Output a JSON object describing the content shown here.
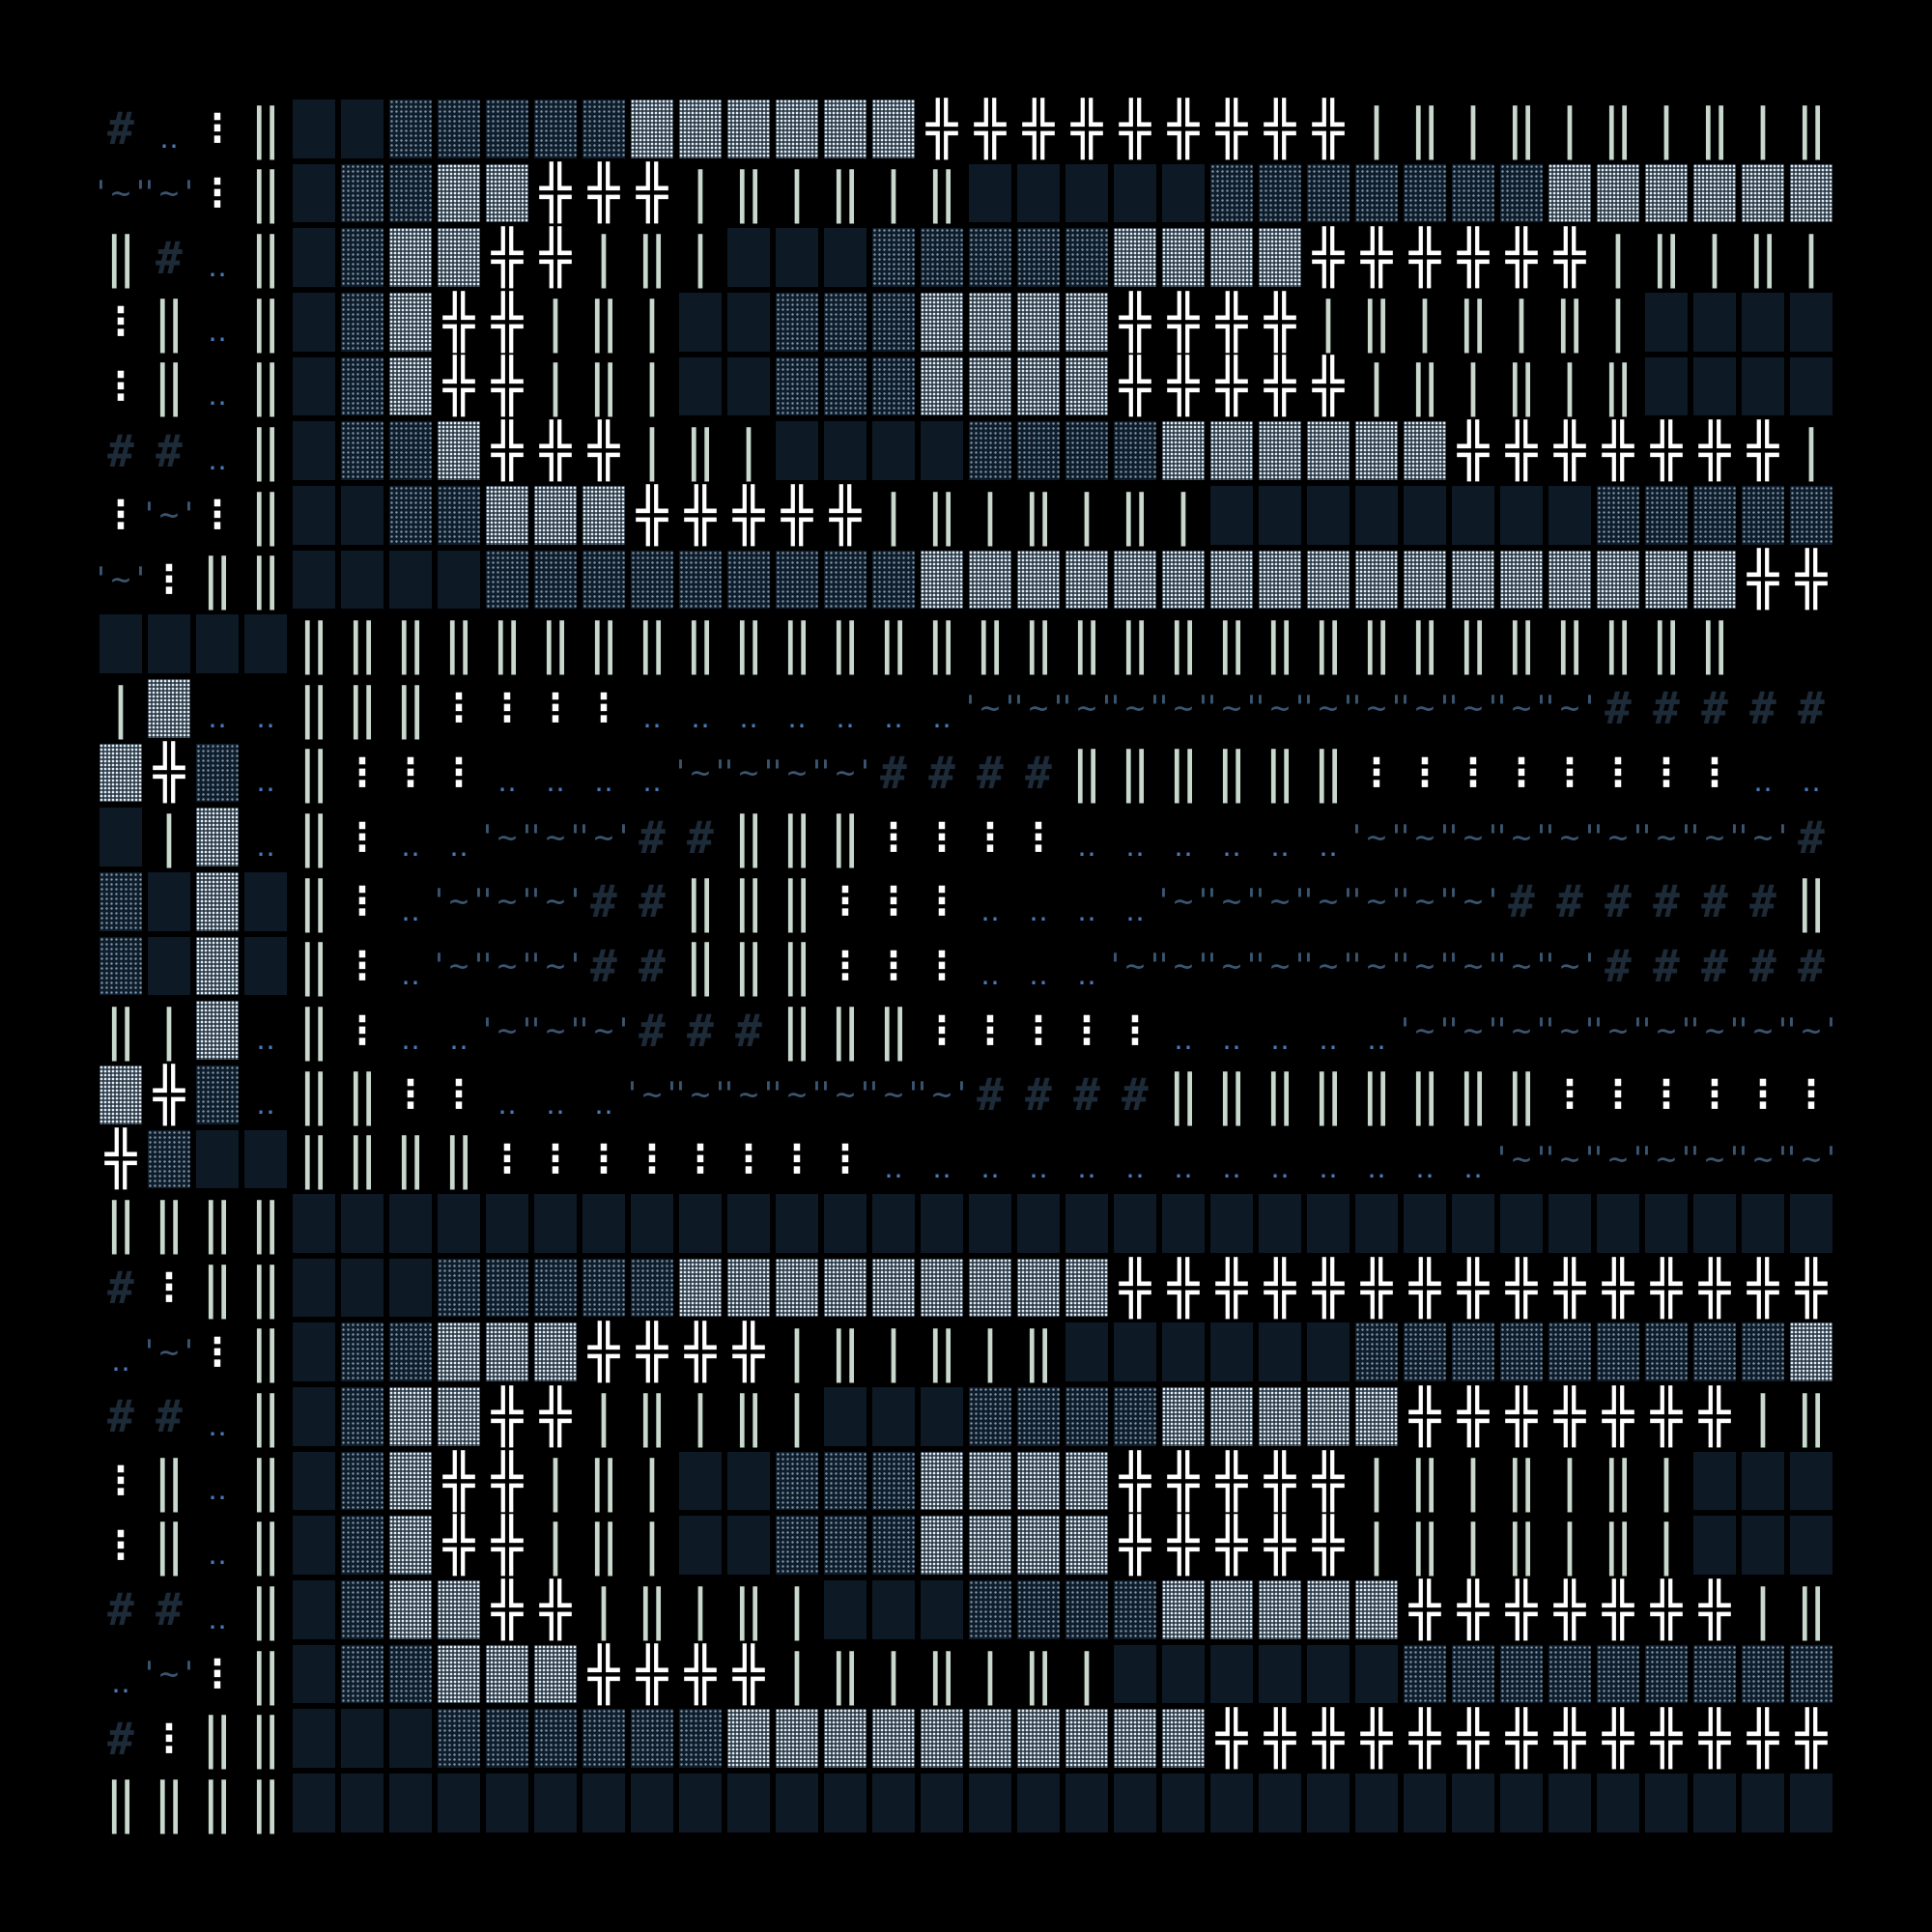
{
  "palette": {
    "background": "#000000",
    "hash": "#1d2a38",
    "dots": "#4a78b8",
    "colon": "#ffffff",
    "bar": "#c8d8cc",
    "cross": "#ffffff",
    "wave": "#3a5570",
    "block_dark": "#0d1a26",
    "block_light": "#e6eef4"
  },
  "glyph_map": {
    "#": "#",
    ".": "‥",
    ":": "⁝",
    "|": "|",
    "‖": "‖",
    "+": "╬",
    "~": "'~'"
  },
  "rows": [
    "#.:‖DDAAAAABBBBBB+++++++++|‖|‖|‖|‖|‖",
    "~~:‖DAABB+++|‖|‖|‖DDDDDAAAAAAABBBBBBB",
    "‖#.‖DABB++|‖|DDDAAAAABBBB++++++|‖|‖|‖",
    ":‖.‖DAB++|‖|DDAAABBBB++++|‖|‖|‖|DDDD",
    ":‖.‖DAB++|‖|DDAAABBBB+++++|‖|‖|‖DDDDD",
    "##.‖DAAB+++|‖|DDDDAAAABBBBBB+++++++|‖",
    ":~:‖DDAABBB+++++|‖|‖|‖|DDDDDDDDAAAAAA",
    "~:‖‖DDDDAAAAAAAAABBBBBBBBBBBBBBBBB++.",
    "DDDD‖‖‖‖‖‖‖‖‖‖‖‖‖‖‖‖‖‖‖‖‖‖‖‖‖‖‖‖‖‖",
    "|B..‖‖‖::::.......~~~~~~~~~~~~~######",
    "B+A.‖:::....~~~~####‖‖‖‖‖‖::::::::.....",
    "D|B.‖:..~~~##‖‖‖::::......~~~~~~~~~####",
    "ADBD‖:.~~~##‖‖‖:::....~~~~~~~######‖‖‖‖‖",
    "ADBD‖:.~~~##‖‖‖:::...~~~~~~~~~~#####‖‖‖‖",
    "‖|B.‖:..~~~###‖‖‖:::::.....~~~~~~~~~~###",
    "B+A.‖‖::...~~~~~~~####‖‖‖‖‖‖‖‖::::::::",
    "+ADD‖‖‖‖::::::::.............~~~~~~~~~~",
    "‖‖‖‖DDDDDDDDDDDDDDDDDDDDDDDDDDDDDDDDDD",
    "#:‖‖DDDAAAAABBBBBBBBB++++++++++++++++|",
    ".~:‖DAABBB++++|‖|‖|‖DDDDDDAAAAAAAAABB",
    "##.‖DABB++|‖|‖|DDDAAAABBBBB+++++++|‖|‖",
    ":‖.‖DAB++|‖|DDAAABBBB+++++|‖|‖|‖|DDDD",
    ":‖.‖DAB++|‖|DDAAABBBB+++++|‖|‖|‖|DDDD",
    "##.‖DABB++|‖|‖|DDDAAAABBBBB+++++++|‖|‖",
    ".~:‖DAABBB++++|‖|‖|‖|DDDDDDAAAAAAAAABB",
    "#:‖‖DDDAAAAAABBBBBBBBBB+++++++++++++++.",
    "‖‖‖‖DDDDDDDDDDDDDDDDDDDDDDDDDDDDDDDDDD"
  ]
}
